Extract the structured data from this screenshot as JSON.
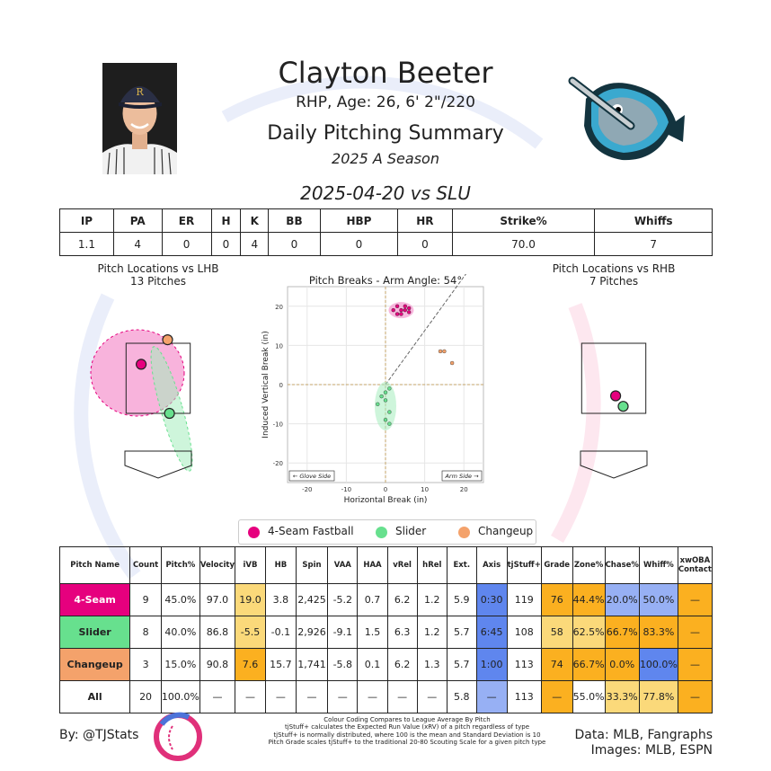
{
  "player": {
    "name": "Clayton Beeter",
    "info": "RHP, Age: 26, 6' 2\"/220",
    "heading": "Daily Pitching Summary",
    "season": "2025 A Season",
    "game": "2025-04-20 vs SLU"
  },
  "summary": {
    "headers": [
      "IP",
      "PA",
      "ER",
      "H",
      "K",
      "BB",
      "HBP",
      "HR",
      "Strike%",
      "Whiffs"
    ],
    "values": [
      "1.1",
      "4",
      "0",
      "0",
      "4",
      "0",
      "0",
      "0",
      "70.0",
      "7"
    ]
  },
  "colors": {
    "fastball": "#e6007e",
    "slider": "#67e08e",
    "changeup": "#f4a26b",
    "cell_hot": "#fbb020",
    "cell_warm": "#fbd97a",
    "cell_cool": "#97b0f4",
    "cell_cold": "#5f86ee"
  },
  "charts": {
    "lhb": {
      "title": "Pitch Locations vs LHB",
      "subtitle": "13 Pitches"
    },
    "rhb": {
      "title": "Pitch Locations vs RHB",
      "subtitle": "7 Pitches"
    },
    "breaks_labels": {
      "glove": "← Glove Side",
      "arm": "Arm Side →"
    }
  },
  "chart_data": [
    {
      "type": "scatter",
      "title": "Pitch Breaks - Arm Angle: 54°",
      "xlabel": "Horizontal Break (in)",
      "ylabel": "Induced Vertical Break (in)",
      "xlim": [
        -25,
        25
      ],
      "ylim": [
        -25,
        25
      ],
      "xticks": [
        -20,
        -10,
        0,
        10,
        20
      ],
      "yticks": [
        -20,
        -10,
        0,
        10,
        20
      ],
      "grid": true,
      "series": [
        {
          "name": "4-Seam Fastball",
          "color": "#e6007e",
          "points": [
            [
              2,
              19
            ],
            [
              3,
              20
            ],
            [
              4,
              19
            ],
            [
              5,
              19
            ],
            [
              6,
              18.5
            ],
            [
              3,
              18
            ],
            [
              4,
              18
            ],
            [
              5,
              20
            ],
            [
              6,
              19.5
            ]
          ]
        },
        {
          "name": "Slider",
          "color": "#67e08e",
          "points": [
            [
              0,
              -2
            ],
            [
              1,
              -1
            ],
            [
              0,
              -4
            ],
            [
              -1,
              -3
            ],
            [
              -2,
              -5
            ],
            [
              1,
              -7
            ],
            [
              0,
              -9
            ],
            [
              1,
              -10
            ]
          ]
        },
        {
          "name": "Changeup",
          "color": "#f4a26b",
          "points": [
            [
              14,
              8.5
            ],
            [
              15,
              8.5
            ],
            [
              17,
              5.5
            ]
          ]
        }
      ]
    },
    {
      "type": "scatter",
      "title": "Pitch Locations vs LHB",
      "series": [
        {
          "name": "4-Seam Fastball",
          "color": "#e6007e",
          "points": [
            [
              -0.45,
              2.9
            ]
          ]
        },
        {
          "name": "Changeup",
          "color": "#f4a26b",
          "points": [
            [
              0.25,
              3.6
            ]
          ]
        },
        {
          "name": "Slider",
          "color": "#67e08e",
          "points": [
            [
              0.3,
              1.5
            ]
          ]
        }
      ]
    },
    {
      "type": "scatter",
      "title": "Pitch Locations vs RHB",
      "series": [
        {
          "name": "4-Seam Fastball",
          "color": "#e6007e",
          "points": [
            [
              0.05,
              2.0
            ]
          ]
        },
        {
          "name": "Slider",
          "color": "#67e08e",
          "points": [
            [
              0.25,
              1.7
            ]
          ]
        }
      ]
    }
  ],
  "legend": [
    "4-Seam Fastball",
    "Slider",
    "Changeup"
  ],
  "pitch_table": {
    "headers": [
      "Pitch Name",
      "Count",
      "Pitch%",
      "Velocity",
      "iVB",
      "HB",
      "Spin",
      "VAA",
      "HAA",
      "vRel",
      "hRel",
      "Ext.",
      "Axis",
      "tjStuff+",
      "Grade",
      "Zone%",
      "Chase%",
      "Whiff%",
      "xwOBA Contact"
    ],
    "rows": [
      {
        "name": "4-Seam",
        "color": "#e6007e",
        "text": "#ffffff",
        "cells": [
          "9",
          "45.0%",
          "97.0",
          "19.0",
          "3.8",
          "2,425",
          "-5.2",
          "0.7",
          "6.2",
          "1.2",
          "5.9",
          "0:30",
          "119",
          "76",
          "44.4%",
          "20.0%",
          "50.0%",
          "—"
        ],
        "shade": {
          "3": "warm",
          "11": "cold",
          "13": "hot",
          "14": "hot",
          "15": "cool",
          "16": "cool",
          "17": "hot"
        }
      },
      {
        "name": "Slider",
        "color": "#67e08e",
        "text": "#222222",
        "cells": [
          "8",
          "40.0%",
          "86.8",
          "-5.5",
          "-0.1",
          "2,926",
          "-9.1",
          "1.5",
          "6.3",
          "1.2",
          "5.7",
          "6:45",
          "108",
          "58",
          "62.5%",
          "66.7%",
          "83.3%",
          "—"
        ],
        "shade": {
          "3": "warm",
          "11": "cold",
          "13": "warm",
          "14": "warm",
          "15": "hot",
          "16": "hot",
          "17": "hot"
        }
      },
      {
        "name": "Changeup",
        "color": "#f4a26b",
        "text": "#222222",
        "cells": [
          "3",
          "15.0%",
          "90.8",
          "7.6",
          "15.7",
          "1,741",
          "-5.8",
          "0.1",
          "6.2",
          "1.3",
          "5.7",
          "1:00",
          "113",
          "74",
          "66.7%",
          "0.0%",
          "100.0%",
          "—"
        ],
        "shade": {
          "3": "hot",
          "11": "cold",
          "13": "hot",
          "14": "hot",
          "15": "hot",
          "16": "cold",
          "17": "hot"
        }
      },
      {
        "name": "All",
        "color": "#ffffff",
        "text": "#222222",
        "cells": [
          "20",
          "100.0%",
          "—",
          "—",
          "—",
          "—",
          "—",
          "—",
          "—",
          "—",
          "5.8",
          "—",
          "113",
          "—",
          "55.0%",
          "33.3%",
          "77.8%",
          "—"
        ],
        "shade": {
          "11": "cool",
          "13": "hot",
          "15": "warm",
          "16": "warm",
          "17": "hot"
        }
      }
    ]
  },
  "footer": {
    "byline": "By: @TJStats",
    "notes": [
      "Colour Coding Compares to League Average By Pitch",
      "tjStuff+ calculates the Expected Run Value (xRV) of a pitch regardless of type",
      "tjStuff+ is normally distributed, where 100 is the mean and Standard Deviation is 10",
      "Pitch Grade scales tjStuff+ to the traditional 20-80 Scouting Scale for a given pitch type"
    ],
    "data_source": "Data: MLB, Fangraphs",
    "images_source": "Images: MLB, ESPN"
  }
}
